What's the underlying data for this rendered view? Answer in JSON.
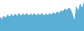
{
  "chart_data": {
    "type": "area",
    "values": [
      30,
      25,
      32,
      28,
      35,
      30,
      36,
      31,
      37,
      32,
      38,
      33,
      37,
      34,
      38,
      33,
      37,
      34,
      38,
      33,
      37,
      34,
      38,
      33,
      37,
      34,
      38,
      35,
      40,
      36,
      42,
      38,
      44,
      42,
      48,
      44,
      50,
      46,
      35,
      20,
      52,
      42,
      58,
      48,
      62
    ],
    "color": "#5baed5",
    "xlim": [
      0,
      44
    ],
    "ylim": [
      0,
      66.96
    ],
    "tick_labels": false,
    "grid": false
  }
}
